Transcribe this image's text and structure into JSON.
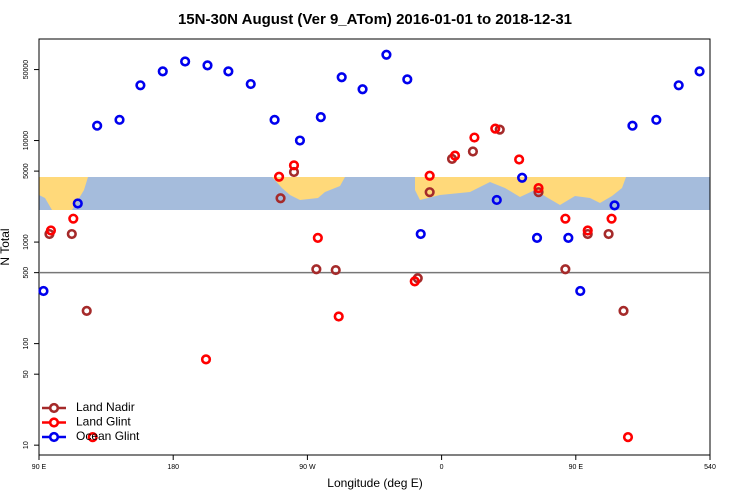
{
  "chart_data": {
    "type": "scatter",
    "title": "15N-30N August (Ver 9_ATom)   2016-01-01 to 2018-12-31",
    "x_label": "Longitude (deg E)",
    "y_label": "N Total",
    "xlim": [
      90,
      540
    ],
    "xticks": [
      {
        "value": 90,
        "label": "90 E"
      },
      180,
      {
        "value": 270,
        "label": "90 W"
      },
      {
        "value": 360,
        "label": "0"
      },
      {
        "value": 450,
        "label": "90 E"
      },
      540
    ],
    "ylim": [
      8,
      100000
    ],
    "yticks": [
      10,
      50,
      100,
      500,
      1000,
      5000,
      10000,
      50000
    ],
    "log_y": true,
    "hline": 500,
    "legend": "bottom-left",
    "series": [
      {
        "name": "Land Nadir",
        "color": "#a52a2a",
        "x": [
          97,
          112,
          122,
          252,
          261,
          276,
          289,
          344,
          352,
          367,
          381,
          399,
          425,
          443,
          458,
          472,
          482
        ],
        "values": [
          1200,
          1200,
          210,
          2700,
          4900,
          540,
          530,
          440,
          3100,
          6600,
          7800,
          12800,
          3100,
          540,
          1200,
          1200,
          210
        ]
      },
      {
        "name": "Land Glint",
        "color": "#ff0000",
        "x": [
          98,
          113,
          126,
          202,
          251,
          261,
          277,
          291,
          342,
          352,
          369,
          382,
          396,
          412,
          425,
          443,
          458,
          474,
          485
        ],
        "values": [
          1300,
          1700,
          12,
          70,
          4400,
          5700,
          1100,
          185,
          410,
          4500,
          7100,
          10700,
          13100,
          6500,
          3400,
          1700,
          1300,
          1700,
          12
        ]
      },
      {
        "name": "Ocean Glint",
        "color": "#0000ee",
        "x": [
          93,
          116,
          129,
          144,
          158,
          173,
          188,
          203,
          217,
          232,
          248,
          265,
          279,
          293,
          307,
          323,
          337,
          346,
          397,
          414,
          424,
          445,
          453,
          476,
          488,
          504,
          519,
          533
        ],
        "values": [
          330,
          2400,
          14000,
          16000,
          35000,
          48000,
          60000,
          55000,
          48000,
          36000,
          16000,
          10000,
          17000,
          42000,
          32000,
          70000,
          40000,
          1200,
          2600,
          4300,
          1100,
          1100,
          330,
          2300,
          14000,
          16000,
          35000,
          48000
        ]
      }
    ]
  }
}
